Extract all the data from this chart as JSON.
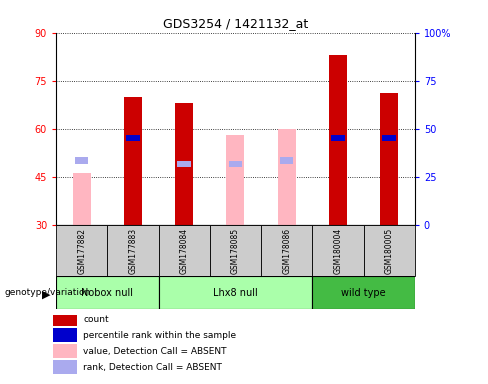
{
  "title": "GDS3254 / 1421132_at",
  "samples": [
    "GSM177882",
    "GSM177883",
    "GSM178084",
    "GSM178085",
    "GSM178086",
    "GSM180004",
    "GSM180005"
  ],
  "red_bars": [
    null,
    70,
    68,
    null,
    null,
    83,
    71
  ],
  "pink_bars": [
    46,
    null,
    null,
    58,
    60,
    null,
    null
  ],
  "blue_squares": [
    null,
    57,
    49,
    null,
    null,
    57,
    57
  ],
  "lightblue_squares": [
    50,
    null,
    49,
    49,
    50,
    null,
    null
  ],
  "ylim_left": [
    30,
    90
  ],
  "ylim_right": [
    0,
    100
  ],
  "yticks_left": [
    30,
    45,
    60,
    75,
    90
  ],
  "yticks_right": [
    0,
    25,
    50,
    75,
    100
  ],
  "bar_width": 0.35,
  "red_color": "#CC0000",
  "pink_color": "#FFB6C1",
  "blue_color": "#0000CC",
  "lightblue_color": "#AAAAEE",
  "sample_bg": "#CCCCCC",
  "nobox_color": "#AAFFAA",
  "lhx8_color": "#AAFFAA",
  "wildtype_color": "#44BB44",
  "group_data": [
    {
      "label": "Nobox null",
      "start": 0,
      "end": 1,
      "color": "#AAFFAA"
    },
    {
      "label": "Lhx8 null",
      "start": 2,
      "end": 4,
      "color": "#AAFFAA"
    },
    {
      "label": "wild type",
      "start": 5,
      "end": 6,
      "color": "#44BB44"
    }
  ],
  "legend_items": [
    {
      "color": "#CC0000",
      "label": "count"
    },
    {
      "color": "#0000CC",
      "label": "percentile rank within the sample"
    },
    {
      "color": "#FFB6C1",
      "label": "value, Detection Call = ABSENT"
    },
    {
      "color": "#AAAAEE",
      "label": "rank, Detection Call = ABSENT"
    }
  ]
}
